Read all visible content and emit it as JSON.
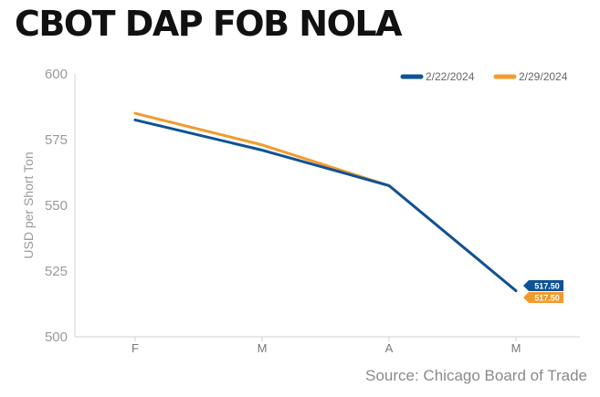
{
  "title": "CBOT DAP FOB NOLA",
  "source": "Source: Chicago Board of Trade",
  "colors": {
    "series1": "#0d5396",
    "series2": "#f39a2d",
    "axis": "#cfcfcf",
    "ticks": "#9a9a9a"
  },
  "chart_data": {
    "type": "line",
    "title": "CBOT DAP FOB NOLA",
    "xlabel": "",
    "ylabel": "USD per Short Ton",
    "categories": [
      "F",
      "M",
      "A",
      "M"
    ],
    "ylim": [
      500,
      600
    ],
    "yticks": [
      500,
      525,
      550,
      575,
      600
    ],
    "grid": false,
    "legend_position": "top-right",
    "series": [
      {
        "name": "2/22/2024",
        "color": "#0d5396",
        "values": [
          582.5,
          571,
          557.5,
          517.5
        ],
        "end_label": "517.50"
      },
      {
        "name": "2/29/2024",
        "color": "#f39a2d",
        "values": [
          585,
          573,
          557.5,
          517.5
        ],
        "end_label": "517.50"
      }
    ]
  }
}
